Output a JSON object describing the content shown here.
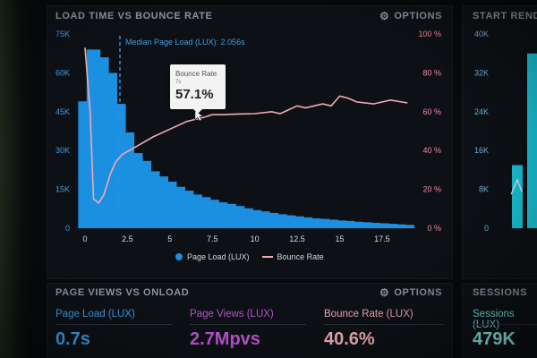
{
  "main_panel": {
    "title": "LOAD TIME VS BOUNCE RATE",
    "options_label": "OPTIONS",
    "median_label": "Median Page Load (LUX): 2.056s",
    "tooltip": {
      "label": "Bounce Rate",
      "sub": "7s",
      "value": "57.1%"
    },
    "legend": {
      "page_load": "Page Load (LUX)",
      "bounce_rate": "Bounce Rate"
    }
  },
  "right_panel": {
    "title": "START RENDE",
    "y_ticks": [
      "40K",
      "32K",
      "24K",
      "16K",
      "8K",
      "0"
    ]
  },
  "bottom_left_panel": {
    "title": "PAGE VIEWS VS ONLOAD",
    "options_label": "OPTIONS",
    "metrics": [
      {
        "label": "Page Load (LUX)",
        "value": "0.7s",
        "label_color": "#3d9ee8",
        "value_color": "#3d9ee8"
      },
      {
        "label": "Page Views (LUX)",
        "value": "2.7Mpvs",
        "label_color": "#b452cc",
        "value_color": "#c055d8"
      },
      {
        "label": "Bounce Rate (LUX)",
        "value": "40.6%",
        "label_color": "#f6a7b2",
        "value_color": "#f9b3be"
      }
    ]
  },
  "bottom_right_panel": {
    "title": "SESSIONS",
    "metric": {
      "label": "Sessions (LUX)",
      "value": "479K",
      "label_color": "#6fe4e0",
      "value_color": "#8ff0ea"
    }
  },
  "colors": {
    "bar": "#1b8fe0",
    "bounce_line": "#f2a9b4",
    "right_axis_text": "#f08aa0",
    "left_axis_text": "#3d9ee8",
    "cyan_bar": "#19c6da"
  },
  "chart_data": [
    {
      "type": "bar",
      "title": "LOAD TIME VS BOUNCE RATE",
      "x_ticks": [
        "0",
        "2.5",
        "5",
        "7.5",
        "10",
        "12.5",
        "15",
        "17.5"
      ],
      "y_left_ticks": [
        "75K",
        "60K",
        "45K",
        "30K",
        "15K",
        "0"
      ],
      "y_right_ticks": [
        "100 %",
        "80 %",
        "60 %",
        "40 %",
        "20 %",
        "0 %"
      ],
      "xlim": [
        -0.25,
        20
      ],
      "ylim": [
        0,
        75000
      ],
      "y2lim": [
        0,
        100
      ],
      "median_x": 2.056,
      "grid": false,
      "legend_position": "bottom",
      "series": [
        {
          "name": "Page Load (LUX)",
          "type": "bar",
          "bar_width": 0.45,
          "x": [
            0.0,
            0.5,
            1.0,
            1.5,
            2.0,
            2.5,
            3.0,
            3.5,
            4.0,
            4.5,
            5.0,
            5.5,
            6.0,
            6.5,
            7.0,
            7.5,
            8.0,
            8.5,
            9.0,
            9.5,
            10.0,
            10.5,
            11.0,
            11.5,
            12.0,
            12.5,
            13.0,
            13.5,
            14.0,
            14.5,
            15.0,
            15.5,
            16.0,
            16.5,
            17.0,
            17.5,
            18.0,
            18.5,
            19.0
          ],
          "y": [
            49000,
            69000,
            66000,
            60000,
            48000,
            37000,
            29000,
            26000,
            22000,
            20000,
            18000,
            16000,
            14500,
            13000,
            12000,
            11000,
            10000,
            9400,
            8600,
            7700,
            7000,
            6500,
            5900,
            5400,
            5000,
            4600,
            4200,
            3800,
            3600,
            3300,
            3000,
            2800,
            2500,
            2300,
            2100,
            1900,
            1700,
            1500,
            1300
          ]
        },
        {
          "name": "Bounce Rate",
          "type": "line",
          "axis": "right",
          "x": [
            0,
            0.3,
            0.5,
            0.8,
            1.1,
            1.5,
            1.8,
            2.2,
            3,
            4,
            5,
            6,
            7,
            7.5,
            8,
            9,
            10,
            11,
            11.5,
            12,
            12.5,
            13,
            14,
            14.5,
            15,
            15.5,
            16,
            17,
            18,
            19
          ],
          "y": [
            93,
            60,
            15,
            13,
            17,
            28,
            34,
            38,
            42,
            47,
            51,
            55,
            57.1,
            58.5,
            58.5,
            58.8,
            59,
            60,
            59,
            61,
            63,
            62,
            64,
            63,
            68,
            67,
            65,
            64,
            66,
            64.5
          ]
        }
      ]
    },
    {
      "type": "bar",
      "title": "START RENDE",
      "y_ticks": [
        "40K",
        "32K",
        "24K",
        "16K",
        "8K",
        "0"
      ],
      "ylim": [
        0,
        40000
      ],
      "series": [
        {
          "name": "",
          "type": "bar",
          "x": [
            0,
            1
          ],
          "y": [
            13000,
            36000
          ]
        },
        {
          "name": "",
          "type": "line",
          "x": [
            -0.4,
            0,
            0.3
          ],
          "y": [
            7000,
            10000,
            7500
          ]
        }
      ]
    }
  ]
}
